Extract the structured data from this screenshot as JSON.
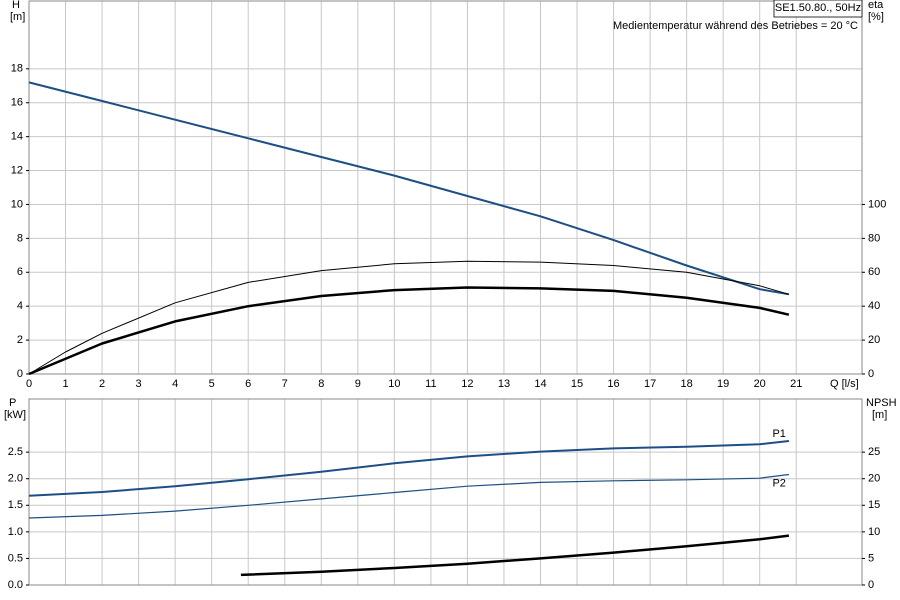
{
  "chart_data": [
    {
      "type": "line",
      "title": "SE1.50.80., 50Hz",
      "subtitle": "Medientemperatur während des Betriebes = 20 °C",
      "ylabel": "H",
      "yunit": "[m]",
      "y2label": "eta",
      "y2unit": "[%]",
      "xlabel": "Q [l/s]",
      "xlim": [
        0,
        22.8
      ],
      "xticks": [
        0,
        1,
        2,
        3,
        4,
        5,
        6,
        7,
        8,
        9,
        10,
        11,
        12,
        13,
        14,
        15,
        16,
        17,
        18,
        19,
        20,
        21
      ],
      "ylim": [
        0,
        22
      ],
      "yticks": [
        0,
        2,
        4,
        6,
        8,
        10,
        12,
        14,
        16,
        18
      ],
      "y2lim": [
        0,
        220
      ],
      "y2ticks": [
        0,
        20,
        40,
        60,
        80,
        100
      ],
      "grid": true,
      "series": [
        {
          "color": "#1d4f85",
          "line_width": 2,
          "x": [
            0,
            2,
            4,
            6,
            8,
            10,
            12,
            14,
            16,
            18,
            20,
            20.8
          ],
          "values": [
            17.2,
            16.1,
            15.0,
            13.9,
            12.8,
            11.7,
            10.5,
            9.3,
            7.9,
            6.4,
            5.0,
            4.7
          ]
        },
        {
          "color": "#000000",
          "line_width": 1,
          "axis": "y2",
          "x": [
            0,
            1,
            2,
            4,
            6,
            8,
            10,
            12,
            14,
            16,
            18,
            20,
            20.8
          ],
          "values": [
            0,
            13,
            24,
            42,
            54,
            61,
            65,
            66.5,
            66,
            64,
            60,
            52,
            47
          ]
        },
        {
          "color": "#000000",
          "line_width": 2.5,
          "axis": "y2",
          "x": [
            0,
            2,
            4,
            6,
            8,
            10,
            12,
            14,
            16,
            18,
            20,
            20.8
          ],
          "values": [
            0,
            18,
            31,
            40,
            46,
            49.5,
            51,
            50.5,
            49,
            45,
            39,
            35
          ]
        }
      ]
    },
    {
      "type": "line",
      "ylabel": "P",
      "yunit": "[kW]",
      "y2label": "NPSH",
      "y2unit": "[m]",
      "xlim": [
        0,
        22.8
      ],
      "xticks": [
        0,
        1,
        2,
        3,
        4,
        5,
        6,
        7,
        8,
        9,
        10,
        11,
        12,
        13,
        14,
        15,
        16,
        17,
        18,
        19,
        20,
        21
      ],
      "ylim": [
        0,
        3.5
      ],
      "yticks": [
        {
          "value": 0,
          "label": "0.0"
        },
        0.5,
        {
          "value": 1,
          "label": "1.0"
        },
        1.5,
        {
          "value": 2,
          "label": "2.0"
        },
        2.5
      ],
      "y2lim": [
        0,
        35
      ],
      "y2ticks": [
        0,
        5,
        10,
        15,
        20,
        25
      ],
      "grid": true,
      "series": [
        {
          "name": "P1",
          "color": "#1d4f85",
          "line_width": 2,
          "x": [
            0,
            2,
            4,
            6,
            8,
            10,
            12,
            14,
            16,
            18,
            20,
            20.8
          ],
          "values": [
            1.68,
            1.75,
            1.86,
            1.99,
            2.13,
            2.29,
            2.42,
            2.51,
            2.57,
            2.6,
            2.65,
            2.71
          ]
        },
        {
          "name": "P2",
          "color": "#1d4f85",
          "line_width": 1.2,
          "x": [
            0,
            2,
            4,
            6,
            8,
            10,
            12,
            14,
            16,
            18,
            20,
            20.8
          ],
          "values": [
            1.26,
            1.31,
            1.39,
            1.5,
            1.62,
            1.74,
            1.86,
            1.93,
            1.96,
            1.98,
            2.01,
            2.08
          ]
        },
        {
          "color": "#000000",
          "line_width": 2.5,
          "axis": "y2",
          "x": [
            5.8,
            8,
            10,
            12,
            14,
            16,
            18,
            20,
            20.8
          ],
          "values": [
            1.9,
            2.5,
            3.2,
            4.0,
            5.0,
            6.1,
            7.3,
            8.6,
            9.3
          ]
        }
      ]
    }
  ]
}
